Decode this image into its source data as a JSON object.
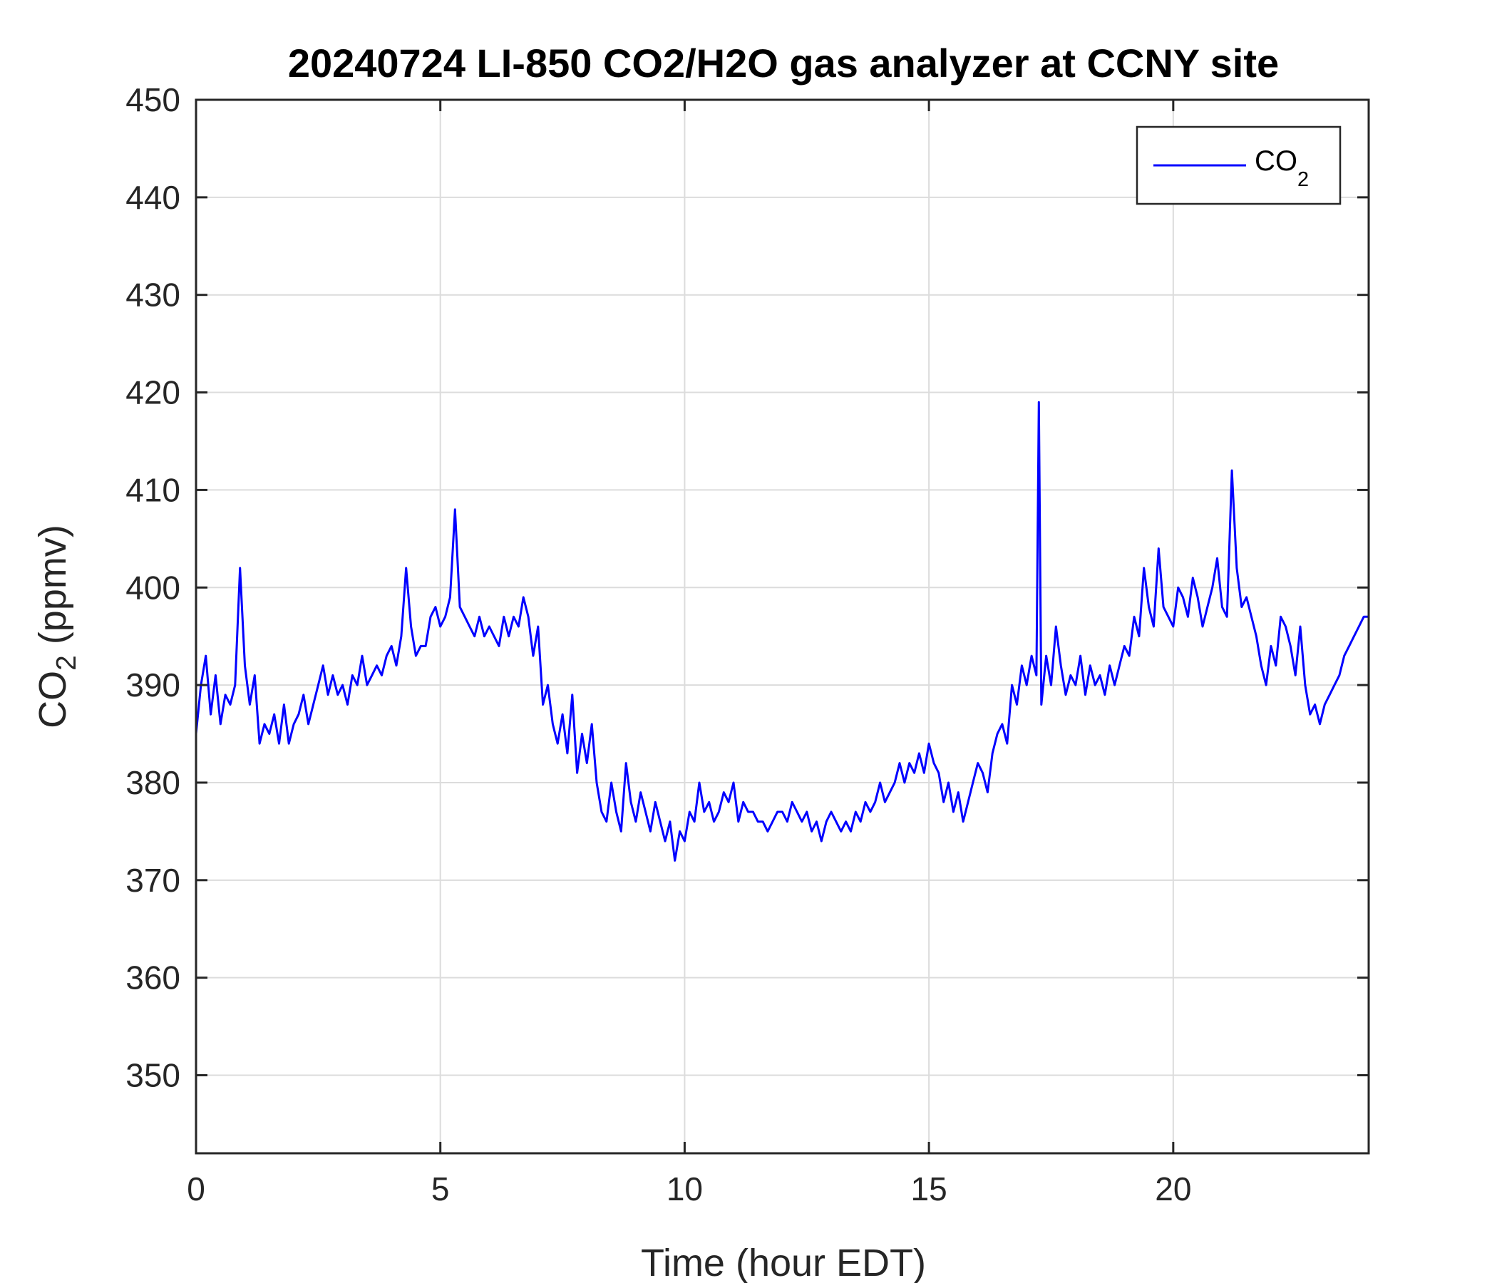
{
  "chart_data": {
    "type": "line",
    "title": "20240724 LI-850 CO2/H2O gas analyzer at CCNY site",
    "xlabel": "Time (hour EDT)",
    "ylabel": {
      "main": "CO",
      "subscript": "2",
      "suffix": " (ppmv)"
    },
    "xlim": [
      0,
      24
    ],
    "ylim": [
      342,
      450
    ],
    "xticks": [
      0,
      5,
      10,
      15,
      20
    ],
    "yticks": [
      350,
      360,
      370,
      380,
      390,
      400,
      410,
      420,
      430,
      440,
      450
    ],
    "grid": true,
    "legend": {
      "position": "top-right",
      "entries": [
        {
          "main": "CO",
          "subscript": "2"
        }
      ]
    },
    "colors": {
      "line": "#0000ff",
      "grid": "#dcdcdc",
      "axis": "#262626"
    },
    "series": [
      {
        "x": [
          0,
          0.1,
          0.2,
          0.3,
          0.4,
          0.5,
          0.6,
          0.7,
          0.8,
          0.9,
          1.0,
          1.1,
          1.2,
          1.3,
          1.4,
          1.5,
          1.6,
          1.7,
          1.8,
          1.9,
          2.0,
          2.1,
          2.2,
          2.3,
          2.4,
          2.5,
          2.6,
          2.7,
          2.8,
          2.9,
          3.0,
          3.1,
          3.2,
          3.3,
          3.4,
          3.5,
          3.6,
          3.7,
          3.8,
          3.9,
          4.0,
          4.1,
          4.2,
          4.3,
          4.4,
          4.5,
          4.6,
          4.7,
          4.8,
          4.9,
          5.0,
          5.1,
          5.2,
          5.3,
          5.4,
          5.5,
          5.6,
          5.7,
          5.8,
          5.9,
          6.0,
          6.1,
          6.2,
          6.3,
          6.4,
          6.5,
          6.6,
          6.7,
          6.8,
          6.9,
          7.0,
          7.1,
          7.2,
          7.3,
          7.4,
          7.5,
          7.6,
          7.7,
          7.8,
          7.9,
          8.0,
          8.1,
          8.2,
          8.3,
          8.4,
          8.5,
          8.6,
          8.7,
          8.8,
          8.9,
          9.0,
          9.1,
          9.2,
          9.3,
          9.4,
          9.5,
          9.6,
          9.7,
          9.8,
          9.9,
          10.0,
          10.1,
          10.2,
          10.3,
          10.4,
          10.5,
          10.6,
          10.7,
          10.8,
          10.9,
          11.0,
          11.1,
          11.2,
          11.3,
          11.4,
          11.5,
          11.6,
          11.7,
          11.8,
          11.9,
          12.0,
          12.1,
          12.2,
          12.3,
          12.4,
          12.5,
          12.6,
          12.7,
          12.8,
          12.9,
          13.0,
          13.1,
          13.2,
          13.3,
          13.4,
          13.5,
          13.6,
          13.7,
          13.8,
          13.9,
          14.0,
          14.1,
          14.2,
          14.3,
          14.4,
          14.5,
          14.6,
          14.7,
          14.8,
          14.9,
          15.0,
          15.1,
          15.2,
          15.3,
          15.4,
          15.5,
          15.6,
          15.7,
          15.8,
          15.9,
          16.0,
          16.1,
          16.2,
          16.3,
          16.4,
          16.5,
          16.6,
          16.7,
          16.8,
          16.9,
          17.0,
          17.1,
          17.2,
          17.25,
          17.3,
          17.4,
          17.5,
          17.6,
          17.7,
          17.8,
          17.9,
          18.0,
          18.1,
          18.2,
          18.3,
          18.4,
          18.5,
          18.6,
          18.7,
          18.8,
          18.9,
          19.0,
          19.1,
          19.2,
          19.3,
          19.4,
          19.5,
          19.6,
          19.7,
          19.8,
          19.9,
          20.0,
          20.1,
          20.2,
          20.3,
          20.4,
          20.5,
          20.6,
          20.7,
          20.8,
          20.9,
          21.0,
          21.1,
          21.2,
          21.3,
          21.4,
          21.5,
          21.6,
          21.7,
          21.8,
          21.9,
          22.0,
          22.1,
          22.2,
          22.3,
          22.4,
          22.5,
          22.6,
          22.7,
          22.8,
          22.9,
          23.0,
          23.1,
          23.2,
          23.3,
          23.4,
          23.5,
          23.6,
          23.7,
          23.8,
          23.9,
          24.0
        ],
        "y": [
          385,
          390,
          393,
          387,
          391,
          386,
          389,
          388,
          390,
          402,
          392,
          388,
          391,
          384,
          386,
          385,
          387,
          384,
          388,
          384,
          386,
          387,
          389,
          386,
          388,
          390,
          392,
          389,
          391,
          389,
          390,
          388,
          391,
          390,
          393,
          390,
          391,
          392,
          391,
          393,
          394,
          392,
          395,
          402,
          396,
          393,
          394,
          394,
          397,
          398,
          396,
          397,
          399,
          408,
          398,
          397,
          396,
          395,
          397,
          395,
          396,
          395,
          394,
          397,
          395,
          397,
          396,
          399,
          397,
          393,
          396,
          388,
          390,
          386,
          384,
          387,
          383,
          389,
          381,
          385,
          382,
          386,
          380,
          377,
          376,
          380,
          377,
          375,
          382,
          378,
          376,
          379,
          377,
          375,
          378,
          376,
          374,
          376,
          372,
          375,
          374,
          377,
          376,
          380,
          377,
          378,
          376,
          377,
          379,
          378,
          380,
          376,
          378,
          377,
          377,
          376,
          376,
          375,
          376,
          377,
          377,
          376,
          378,
          377,
          376,
          377,
          375,
          376,
          374,
          376,
          377,
          376,
          375,
          376,
          375,
          377,
          376,
          378,
          377,
          378,
          380,
          378,
          379,
          380,
          382,
          380,
          382,
          381,
          383,
          381,
          384,
          382,
          381,
          378,
          380,
          377,
          379,
          376,
          378,
          380,
          382,
          381,
          379,
          383,
          385,
          386,
          384,
          390,
          388,
          392,
          390,
          393,
          391,
          419,
          388,
          393,
          390,
          396,
          392,
          389,
          391,
          390,
          393,
          389,
          392,
          390,
          391,
          389,
          392,
          390,
          392,
          394,
          393,
          397,
          395,
          402,
          398,
          396,
          404,
          398,
          397,
          396,
          400,
          399,
          397,
          401,
          399,
          396,
          398,
          400,
          403,
          398,
          397,
          412,
          402,
          398,
          399,
          397,
          395,
          392,
          390,
          394,
          392,
          397,
          396,
          394,
          391,
          396,
          390,
          387,
          388,
          386,
          388,
          389,
          390,
          391,
          393,
          394,
          395,
          396,
          397,
          397
        ]
      }
    ]
  }
}
